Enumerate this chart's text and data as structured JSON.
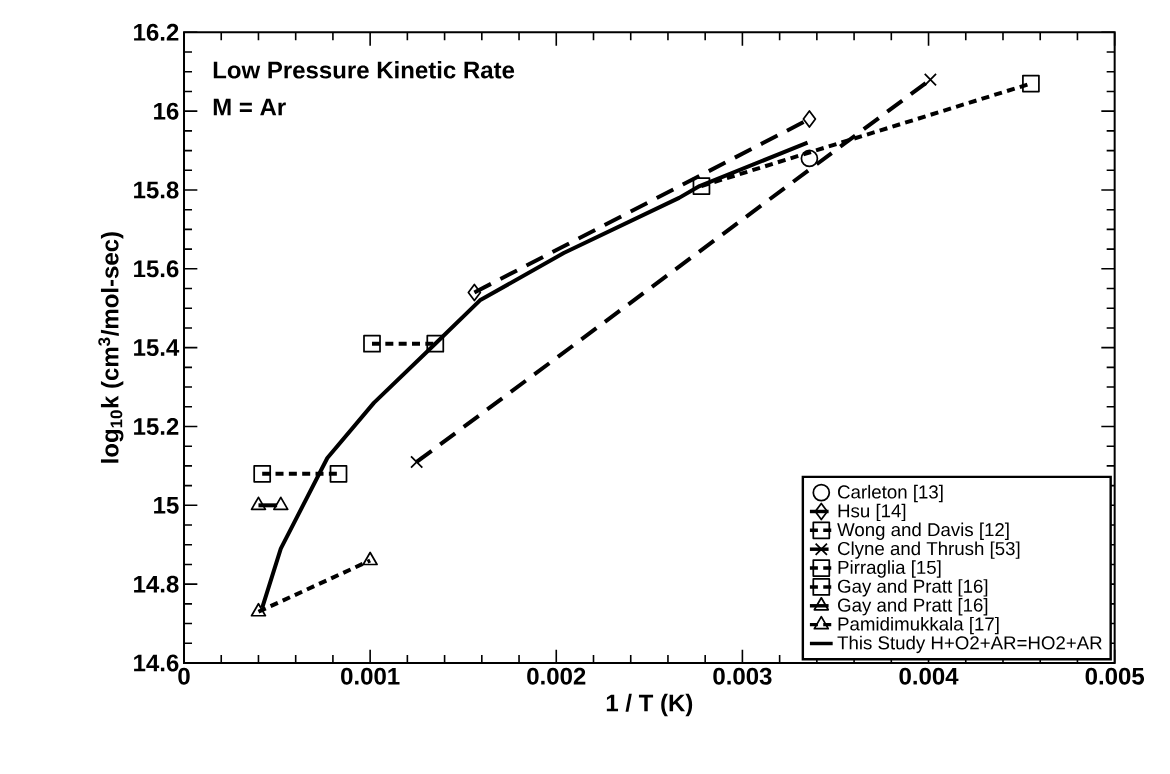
{
  "chart_data": {
    "type": "line",
    "xlabel": "1 / T (K)",
    "ylabel": "log$_{10}$k (cm$^{3}$/mol-sec)",
    "annotations": [
      "Low Pressure Kinetic Rate",
      "M = Ar"
    ],
    "xlim": [
      0,
      0.005
    ],
    "ylim": [
      14.6,
      16.2
    ],
    "xticks": [
      {
        "value": 0,
        "label": "0"
      },
      {
        "value": 0.001,
        "label": "0.001"
      },
      {
        "value": 0.002,
        "label": "0.002"
      },
      {
        "value": 0.003,
        "label": "0.003"
      },
      {
        "value": 0.004,
        "label": "0.004"
      },
      {
        "value": 0.005,
        "label": "0.005"
      }
    ],
    "yticks": [
      {
        "value": 14.6,
        "label": "14.6"
      },
      {
        "value": 14.8,
        "label": "14.8"
      },
      15,
      {
        "value": 15.2,
        "label": "15.2"
      },
      {
        "value": 15.4,
        "label": "15.4"
      },
      {
        "value": 15.6,
        "label": "15.6"
      },
      {
        "value": 15.8,
        "label": "15.8"
      },
      16,
      {
        "value": 16.2,
        "label": "16.2"
      }
    ],
    "grid": false,
    "legend": "bottom right",
    "series": [
      {
        "name": "Carleton [13]",
        "type": "scatter",
        "color": "#000000",
        "marker": "circle",
        "x": [
          0.00336
        ],
        "values": [
          15.88
        ]
      },
      {
        "name": "Hsu [14]",
        "color": "#000000",
        "marker": "diamond",
        "line_style": "dashed",
        "x": [
          0.00156,
          0.00336
        ],
        "values": [
          15.54,
          15.98
        ]
      },
      {
        "name": "Wong and Davis [12]",
        "color": "#000000",
        "marker": "square",
        "line_style": "dotted",
        "x": [
          0.00278,
          0.00455
        ],
        "values": [
          15.81,
          16.07
        ]
      },
      {
        "name": "Clyne and Thrush [53]",
        "color": "#000000",
        "marker": "cross",
        "line_style": "dashed",
        "x": [
          0.00125,
          0.00401
        ],
        "values": [
          15.11,
          16.08
        ]
      },
      {
        "name": "Pirraglia [15]",
        "color": "#000000",
        "marker": "square",
        "line_style": "dotted",
        "x": [
          0.00101,
          0.00135
        ],
        "values": [
          15.41,
          15.41
        ]
      },
      {
        "name": "Gay and Pratt [16]",
        "color": "#000000",
        "marker": "square",
        "line_style": "dotted",
        "x": [
          0.00042,
          0.00083
        ],
        "values": [
          15.08,
          15.08
        ]
      },
      {
        "name": "Gay and Pratt [16]",
        "color": "#000000",
        "marker": "triangle",
        "line_style": "dashed",
        "x": [
          0.0004,
          0.00052
        ],
        "values": [
          15.0,
          15.0
        ]
      },
      {
        "name": "Pamidimukkala [17]",
        "color": "#000000",
        "marker": "triangle",
        "line_style": "dotted",
        "x": [
          0.0004,
          0.001
        ],
        "values": [
          14.73,
          14.86
        ]
      },
      {
        "name": "This Study H+O2+AR=HO2+AR",
        "color": "#000000",
        "marker": "none",
        "line_style": "solid",
        "x": [
          0.00042,
          0.00052,
          0.00077,
          0.00102,
          0.00135,
          0.00159,
          0.00204,
          0.00266,
          0.00277,
          0.00335
        ],
        "values": [
          14.74,
          14.89,
          15.12,
          15.26,
          15.41,
          15.52,
          15.64,
          15.78,
          15.81,
          15.92
        ]
      }
    ]
  }
}
